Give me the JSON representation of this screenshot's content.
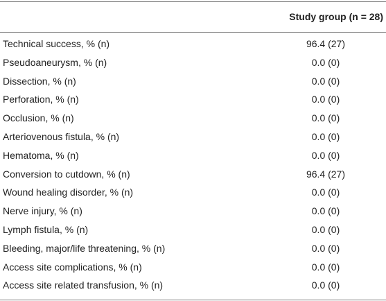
{
  "table": {
    "header": [
      "",
      "Study group (n = 28)"
    ],
    "rows": [
      [
        "Technical success, % (n)",
        "96.4 (27)"
      ],
      [
        "Pseudoaneurysm, % (n)",
        "0.0 (0)"
      ],
      [
        "Dissection, % (n)",
        "0.0 (0)"
      ],
      [
        "Perforation, % (n)",
        "0.0 (0)"
      ],
      [
        "Occlusion, % (n)",
        "0.0 (0)"
      ],
      [
        "Arteriovenous fistula, % (n)",
        "0.0 (0)"
      ],
      [
        "Hematoma, % (n)",
        "0.0 (0)"
      ],
      [
        "Conversion to cutdown, % (n)",
        "96.4 (27)"
      ],
      [
        "Wound healing disorder, % (n)",
        "0.0 (0)"
      ],
      [
        "Nerve injury, % (n)",
        "0.0 (0)"
      ],
      [
        "Lymph fistula, % (n)",
        "0.0 (0)"
      ],
      [
        "Bleeding, major/life threatening, % (n)",
        "0.0 (0)"
      ],
      [
        "Access site complications, % (n)",
        "0.0 (0)"
      ],
      [
        "Access site related transfusion, % (n)",
        "0.0 (0)"
      ]
    ]
  }
}
